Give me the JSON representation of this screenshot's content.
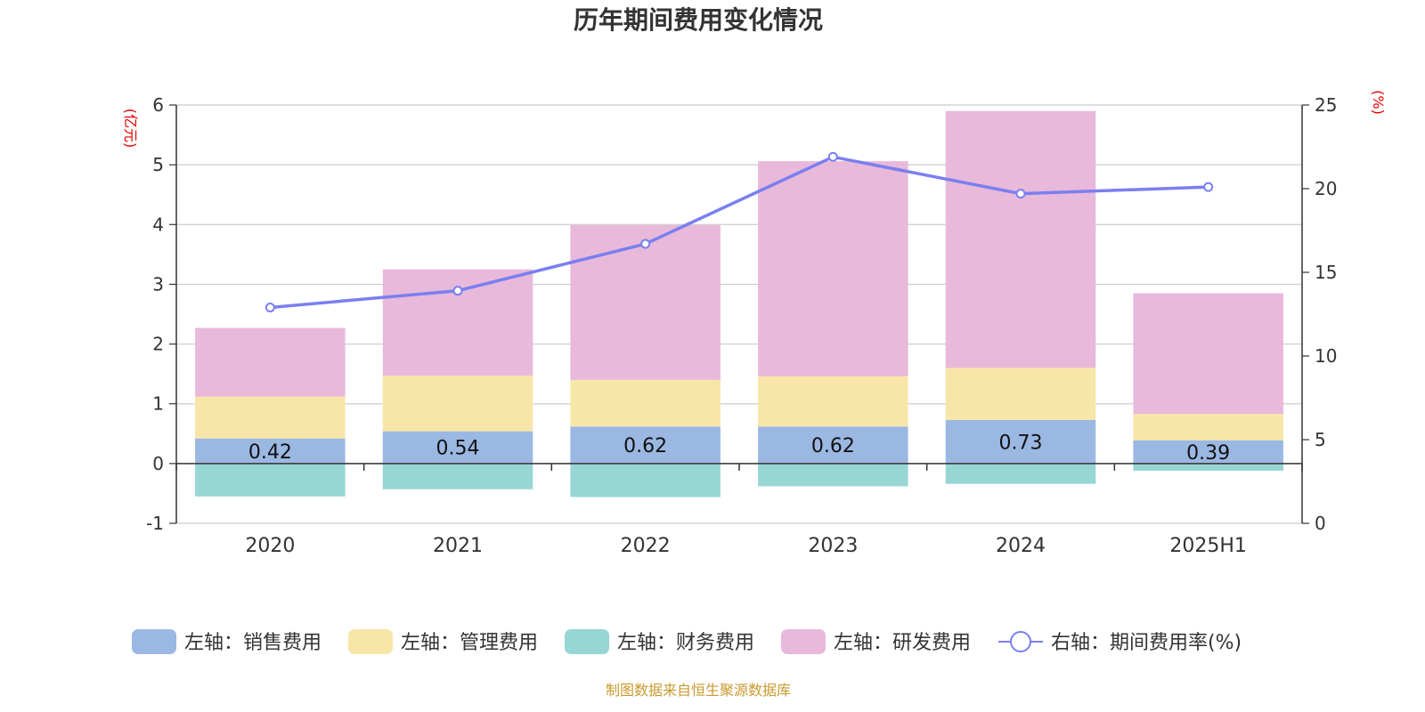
{
  "chart_data": {
    "type": "bar",
    "title": "历年期间费用变化情况",
    "categories": [
      "2020",
      "2021",
      "2022",
      "2023",
      "2024",
      "2025H1"
    ],
    "left_axis": {
      "unit": "(亿元)",
      "ylim": [
        -1,
        6
      ],
      "ticks": [
        -1,
        0,
        1,
        2,
        3,
        4,
        5,
        6
      ]
    },
    "right_axis": {
      "unit": "(%)",
      "ylim": [
        0,
        25
      ],
      "ticks": [
        0,
        5,
        10,
        15,
        20,
        25
      ]
    },
    "series": [
      {
        "name": "左轴：销售费用",
        "type": "bar",
        "color": "#9bb8e3",
        "values": [
          0.42,
          0.54,
          0.62,
          0.62,
          0.73,
          0.39
        ],
        "labels": [
          "0.42",
          "0.54",
          "0.62",
          "0.62",
          "0.73",
          "0.39"
        ]
      },
      {
        "name": "左轴：管理费用",
        "type": "bar",
        "color": "#f8e6a8",
        "values": [
          0.7,
          0.93,
          0.78,
          0.84,
          0.87,
          0.44
        ]
      },
      {
        "name": "左轴：财务费用",
        "type": "bar",
        "color": "#98d5d5",
        "values": [
          -0.55,
          -0.43,
          -0.56,
          -0.38,
          -0.34,
          -0.12
        ]
      },
      {
        "name": "左轴：研发费用",
        "type": "bar",
        "color": "#e8b9da",
        "values": [
          1.15,
          1.78,
          2.59,
          3.6,
          4.3,
          2.02
        ]
      },
      {
        "name": "右轴：期间费用率(%)",
        "type": "line",
        "axis": "right",
        "color": "#7a7ff0",
        "values": [
          12.9,
          13.9,
          16.7,
          21.9,
          19.7,
          20.1
        ]
      }
    ],
    "legend_position": "bottom",
    "grid": true,
    "source_note": "制图数据来自恒生聚源数据库"
  }
}
